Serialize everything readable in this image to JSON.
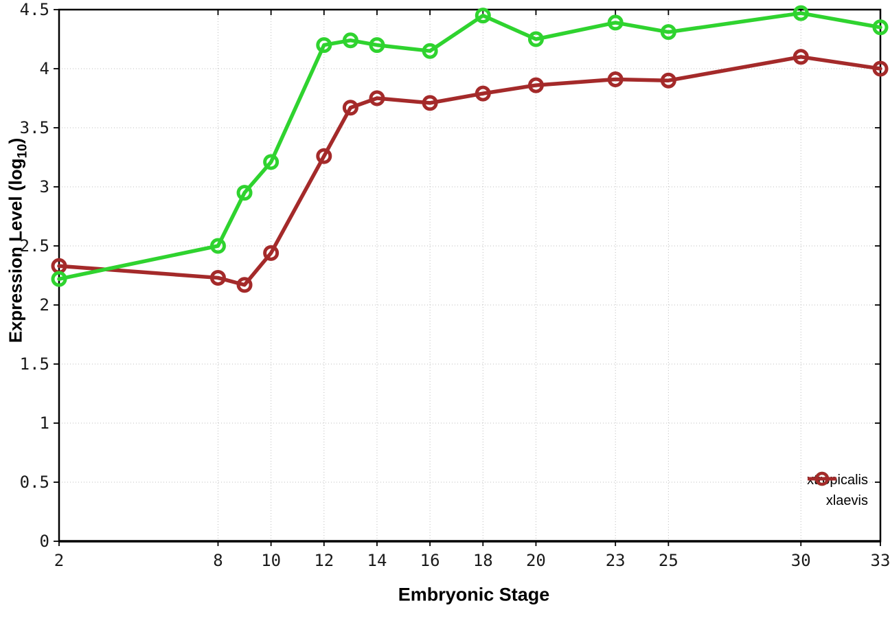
{
  "chart_data": {
    "type": "line",
    "title": "",
    "xlabel": "Embryonic Stage",
    "ylabel": "Expression Level (log10)",
    "ylabel_parts": {
      "main": "Expression Level (log",
      "sub": "10",
      "end": ")"
    },
    "x": [
      2,
      8,
      9,
      10,
      12,
      13,
      14,
      16,
      18,
      20,
      23,
      25,
      30,
      33
    ],
    "xticks": [
      2,
      8,
      10,
      12,
      14,
      16,
      18,
      20,
      23,
      25,
      30,
      33
    ],
    "yticks": [
      0,
      0.5,
      1,
      1.5,
      2,
      2.5,
      3,
      3.5,
      4,
      4.5
    ],
    "xlim": [
      2,
      33
    ],
    "ylim": [
      0,
      4.5
    ],
    "grid": true,
    "legend_position": "inside-bottom-right",
    "series": [
      {
        "name": "xtropicalis",
        "color": "#2fd32f",
        "values": [
          2.22,
          2.5,
          2.95,
          3.21,
          4.2,
          4.24,
          4.2,
          4.15,
          4.45,
          4.25,
          4.39,
          4.31,
          4.47,
          4.35
        ]
      },
      {
        "name": "xlaevis",
        "color": "#a42a2a",
        "values": [
          2.33,
          2.23,
          2.17,
          2.44,
          3.26,
          3.67,
          3.75,
          3.71,
          3.79,
          3.86,
          3.91,
          3.9,
          4.1,
          4.0
        ]
      }
    ]
  }
}
